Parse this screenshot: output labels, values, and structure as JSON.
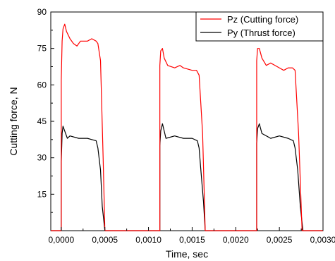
{
  "chart_data": {
    "type": "line",
    "title": "",
    "xlabel": "Time, sec",
    "ylabel": "Cutting force, N",
    "xlim": [
      -0.00012,
      0.003
    ],
    "ylim": [
      0,
      90
    ],
    "x_ticks": [
      0.0,
      0.0005,
      0.001,
      0.0015,
      0.002,
      0.0025,
      0.003
    ],
    "x_tick_labels": [
      "0,0000",
      "0,0005",
      "0,0010",
      "0,0015",
      "0,0020",
      "0,0025",
      "0,0030"
    ],
    "y_ticks": [
      15,
      30,
      45,
      60,
      75,
      90
    ],
    "y_tick_labels": [
      "15",
      "30",
      "45",
      "60",
      "75",
      "90"
    ],
    "grid": false,
    "legend_position": "top-right",
    "series": [
      {
        "name": "Pz (Cutting force)",
        "color": "#ff0000",
        "points": [
          [
            -0.00012,
            0
          ],
          [
            0.0,
            0
          ],
          [
            0.0,
            62
          ],
          [
            1e-05,
            78
          ],
          [
            2e-05,
            83
          ],
          [
            4e-05,
            85
          ],
          [
            6e-05,
            82
          ],
          [
            0.0001,
            79
          ],
          [
            0.00014,
            77
          ],
          [
            0.00018,
            76
          ],
          [
            0.00022,
            78
          ],
          [
            0.0003,
            78
          ],
          [
            0.00035,
            79
          ],
          [
            0.0004,
            78
          ],
          [
            0.00042,
            77
          ],
          [
            0.00045,
            70
          ],
          [
            0.00048,
            30
          ],
          [
            0.0005,
            0
          ],
          [
            0.00113,
            0
          ],
          [
            0.00113,
            68
          ],
          [
            0.00114,
            74
          ],
          [
            0.00116,
            75
          ],
          [
            0.00118,
            71
          ],
          [
            0.00122,
            68
          ],
          [
            0.0013,
            67
          ],
          [
            0.00136,
            68
          ],
          [
            0.0014,
            67
          ],
          [
            0.0015,
            66
          ],
          [
            0.00155,
            66
          ],
          [
            0.00158,
            64
          ],
          [
            0.00162,
            40
          ],
          [
            0.00165,
            0
          ],
          [
            0.00224,
            0
          ],
          [
            0.00224,
            70
          ],
          [
            0.00225,
            75
          ],
          [
            0.00227,
            75
          ],
          [
            0.0023,
            71
          ],
          [
            0.00235,
            68
          ],
          [
            0.0024,
            69
          ],
          [
            0.00245,
            68
          ],
          [
            0.0025,
            67
          ],
          [
            0.00255,
            66
          ],
          [
            0.0026,
            67
          ],
          [
            0.00265,
            67
          ],
          [
            0.00268,
            66
          ],
          [
            0.00272,
            40
          ],
          [
            0.00276,
            0
          ],
          [
            0.003,
            0
          ]
        ]
      },
      {
        "name": "Py (Thrust force)",
        "color": "#000000",
        "points": [
          [
            -0.00012,
            0
          ],
          [
            0.0,
            0
          ],
          [
            0.0,
            28
          ],
          [
            1e-05,
            40
          ],
          [
            2e-05,
            43
          ],
          [
            4e-05,
            41
          ],
          [
            7e-05,
            38
          ],
          [
            0.0001,
            39
          ],
          [
            0.0002,
            38
          ],
          [
            0.0003,
            38
          ],
          [
            0.0004,
            37
          ],
          [
            0.00042,
            34
          ],
          [
            0.00045,
            25
          ],
          [
            0.00047,
            10
          ],
          [
            0.0005,
            0
          ],
          [
            0.00113,
            0
          ],
          [
            0.00113,
            35
          ],
          [
            0.00114,
            41
          ],
          [
            0.00116,
            44
          ],
          [
            0.00118,
            41
          ],
          [
            0.0012,
            38
          ],
          [
            0.0013,
            39
          ],
          [
            0.0014,
            38
          ],
          [
            0.0015,
            38
          ],
          [
            0.00156,
            37
          ],
          [
            0.00158,
            34
          ],
          [
            0.0016,
            25
          ],
          [
            0.00163,
            12
          ],
          [
            0.00165,
            0
          ],
          [
            0.00224,
            0
          ],
          [
            0.00224,
            36
          ],
          [
            0.00225,
            42
          ],
          [
            0.00227,
            44
          ],
          [
            0.0023,
            40
          ],
          [
            0.0024,
            38
          ],
          [
            0.0025,
            39
          ],
          [
            0.0026,
            38
          ],
          [
            0.00266,
            37
          ],
          [
            0.00268,
            34
          ],
          [
            0.00271,
            25
          ],
          [
            0.00274,
            10
          ],
          [
            0.00277,
            0
          ],
          [
            0.003,
            0
          ]
        ]
      }
    ]
  }
}
